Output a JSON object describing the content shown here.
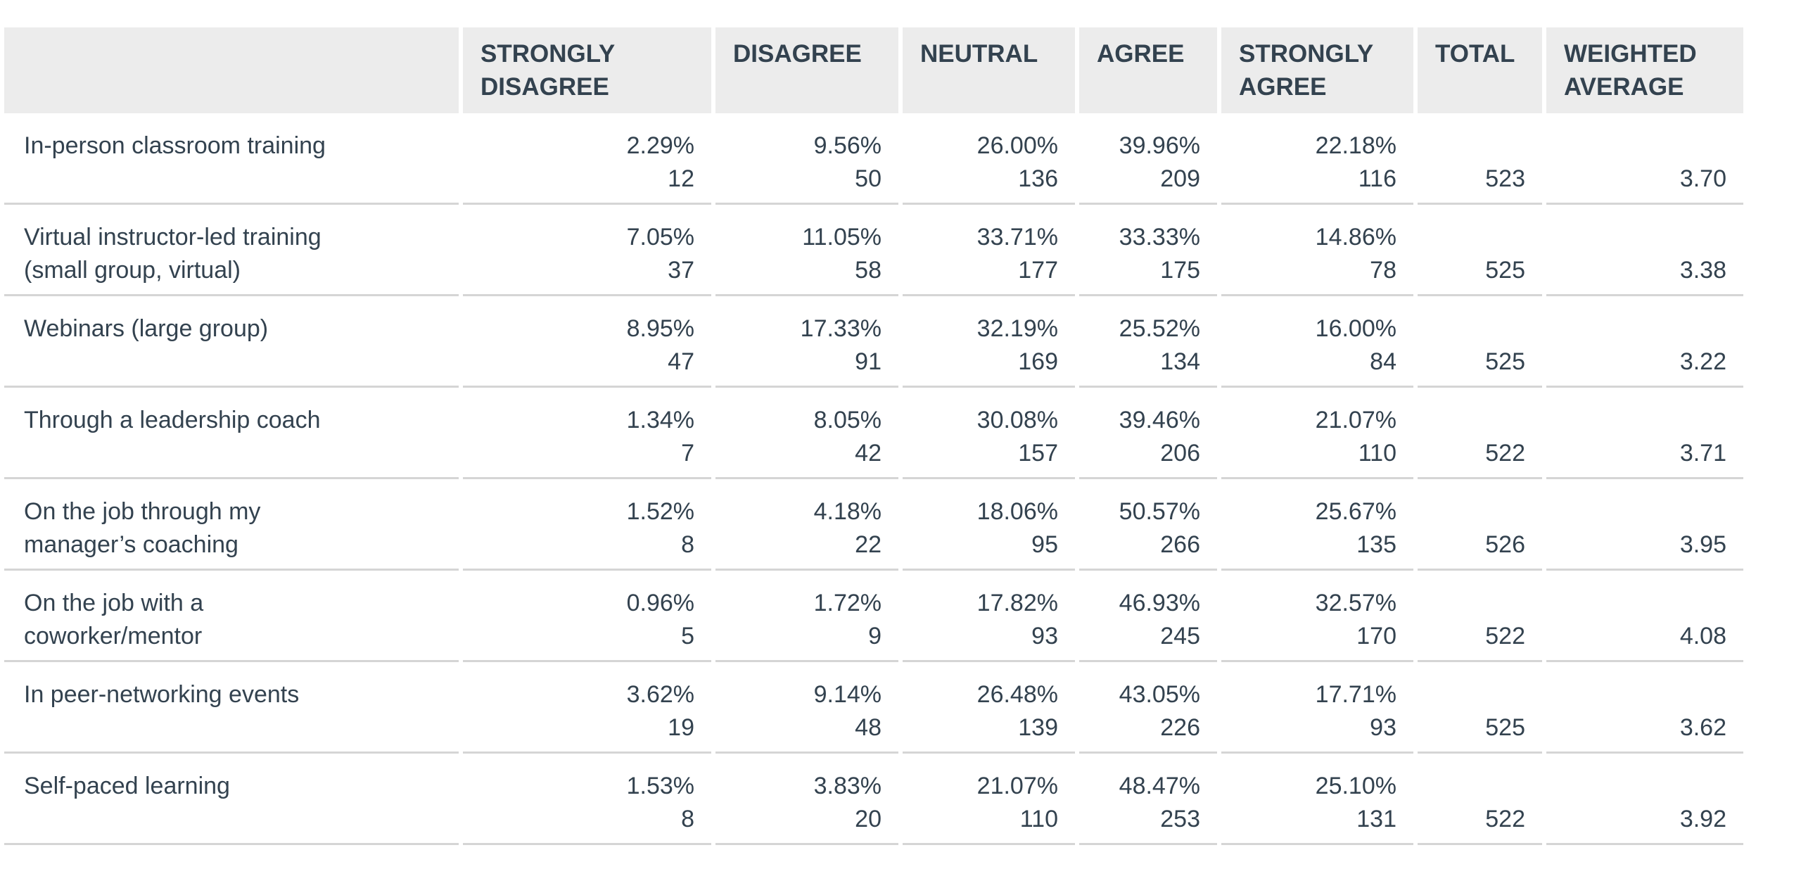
{
  "colors": {
    "header_background": "#ececec",
    "text": "#33424f",
    "row_divider": "#d5d5d5",
    "page_background": "#ffffff"
  },
  "table": {
    "columns": [
      "",
      "STRONGLY DISAGREE",
      "DISAGREE",
      "NEUTRAL",
      "AGREE",
      "STRONGLY AGREE",
      "TOTAL",
      "WEIGHTED AVERAGE"
    ],
    "rows": [
      {
        "label": "In-person classroom training",
        "cells": [
          {
            "pct": "2.29%",
            "n": "12"
          },
          {
            "pct": "9.56%",
            "n": "50"
          },
          {
            "pct": "26.00%",
            "n": "136"
          },
          {
            "pct": "39.96%",
            "n": "209"
          },
          {
            "pct": "22.18%",
            "n": "116"
          }
        ],
        "total": "523",
        "avg": "3.70"
      },
      {
        "label": "Virtual instructor-led training\n(small group, virtual)",
        "cells": [
          {
            "pct": "7.05%",
            "n": "37"
          },
          {
            "pct": "11.05%",
            "n": "58"
          },
          {
            "pct": "33.71%",
            "n": "177"
          },
          {
            "pct": "33.33%",
            "n": "175"
          },
          {
            "pct": "14.86%",
            "n": "78"
          }
        ],
        "total": "525",
        "avg": "3.38"
      },
      {
        "label": "Webinars (large group)",
        "cells": [
          {
            "pct": "8.95%",
            "n": "47"
          },
          {
            "pct": "17.33%",
            "n": "91"
          },
          {
            "pct": "32.19%",
            "n": "169"
          },
          {
            "pct": "25.52%",
            "n": "134"
          },
          {
            "pct": "16.00%",
            "n": "84"
          }
        ],
        "total": "525",
        "avg": "3.22"
      },
      {
        "label": "Through a leadership coach",
        "cells": [
          {
            "pct": "1.34%",
            "n": "7"
          },
          {
            "pct": "8.05%",
            "n": "42"
          },
          {
            "pct": "30.08%",
            "n": "157"
          },
          {
            "pct": "39.46%",
            "n": "206"
          },
          {
            "pct": "21.07%",
            "n": "110"
          }
        ],
        "total": "522",
        "avg": "3.71"
      },
      {
        "label": "On the job through my\nmanager’s coaching",
        "cells": [
          {
            "pct": "1.52%",
            "n": "8"
          },
          {
            "pct": "4.18%",
            "n": "22"
          },
          {
            "pct": "18.06%",
            "n": "95"
          },
          {
            "pct": "50.57%",
            "n": "266"
          },
          {
            "pct": "25.67%",
            "n": "135"
          }
        ],
        "total": "526",
        "avg": "3.95"
      },
      {
        "label": "On the job with a\ncoworker/mentor",
        "cells": [
          {
            "pct": "0.96%",
            "n": "5"
          },
          {
            "pct": "1.72%",
            "n": "9"
          },
          {
            "pct": "17.82%",
            "n": "93"
          },
          {
            "pct": "46.93%",
            "n": "245"
          },
          {
            "pct": "32.57%",
            "n": "170"
          }
        ],
        "total": "522",
        "avg": "4.08"
      },
      {
        "label": "In peer-networking events",
        "cells": [
          {
            "pct": "3.62%",
            "n": "19"
          },
          {
            "pct": "9.14%",
            "n": "48"
          },
          {
            "pct": "26.48%",
            "n": "139"
          },
          {
            "pct": "43.05%",
            "n": "226"
          },
          {
            "pct": "17.71%",
            "n": "93"
          }
        ],
        "total": "525",
        "avg": "3.62"
      },
      {
        "label": "Self-paced learning",
        "cells": [
          {
            "pct": "1.53%",
            "n": "8"
          },
          {
            "pct": "3.83%",
            "n": "20"
          },
          {
            "pct": "21.07%",
            "n": "110"
          },
          {
            "pct": "48.47%",
            "n": "253"
          },
          {
            "pct": "25.10%",
            "n": "131"
          }
        ],
        "total": "522",
        "avg": "3.92"
      }
    ]
  },
  "chart_data": {
    "type": "table",
    "categories": [
      "STRONGLY DISAGREE",
      "DISAGREE",
      "NEUTRAL",
      "AGREE",
      "STRONGLY AGREE"
    ],
    "rows": [
      {
        "label": "In-person classroom training",
        "percentages": [
          2.29,
          9.56,
          26.0,
          39.96,
          22.18
        ],
        "counts": [
          12,
          50,
          136,
          209,
          116
        ],
        "total": 523,
        "weighted_average": 3.7
      },
      {
        "label": "Virtual instructor-led training (small group, virtual)",
        "percentages": [
          7.05,
          11.05,
          33.71,
          33.33,
          14.86
        ],
        "counts": [
          37,
          58,
          177,
          175,
          78
        ],
        "total": 525,
        "weighted_average": 3.38
      },
      {
        "label": "Webinars (large group)",
        "percentages": [
          8.95,
          17.33,
          32.19,
          25.52,
          16.0
        ],
        "counts": [
          47,
          91,
          169,
          134,
          84
        ],
        "total": 525,
        "weighted_average": 3.22
      },
      {
        "label": "Through a leadership coach",
        "percentages": [
          1.34,
          8.05,
          30.08,
          39.46,
          21.07
        ],
        "counts": [
          7,
          42,
          157,
          206,
          110
        ],
        "total": 522,
        "weighted_average": 3.71
      },
      {
        "label": "On the job through my manager’s coaching",
        "percentages": [
          1.52,
          4.18,
          18.06,
          50.57,
          25.67
        ],
        "counts": [
          8,
          22,
          95,
          266,
          135
        ],
        "total": 526,
        "weighted_average": 3.95
      },
      {
        "label": "On the job with a coworker/mentor",
        "percentages": [
          0.96,
          1.72,
          17.82,
          46.93,
          32.57
        ],
        "counts": [
          5,
          9,
          93,
          245,
          170
        ],
        "total": 522,
        "weighted_average": 4.08
      },
      {
        "label": "In peer-networking events",
        "percentages": [
          3.62,
          9.14,
          26.48,
          43.05,
          17.71
        ],
        "counts": [
          19,
          48,
          139,
          226,
          93
        ],
        "total": 525,
        "weighted_average": 3.62
      },
      {
        "label": "Self-paced learning",
        "percentages": [
          1.53,
          3.83,
          21.07,
          48.47,
          25.1
        ],
        "counts": [
          8,
          20,
          110,
          253,
          131
        ],
        "total": 522,
        "weighted_average": 3.92
      }
    ]
  }
}
